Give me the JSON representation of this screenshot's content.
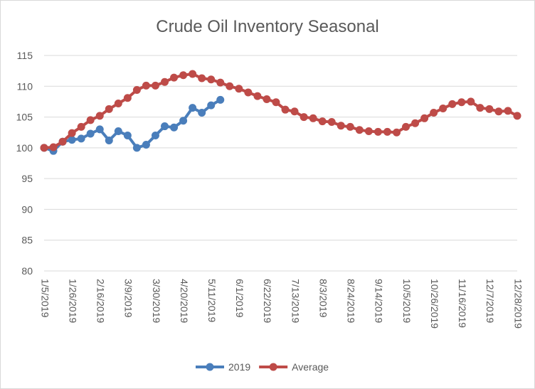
{
  "chart_data": {
    "type": "line",
    "title": "Crude Oil Inventory Seasonal",
    "categories": [
      "1/5/2019",
      null,
      null,
      "1/26/2019",
      null,
      null,
      "2/16/2019",
      null,
      null,
      "3/9/2019",
      null,
      null,
      "3/30/2019",
      null,
      null,
      "4/20/2019",
      null,
      null,
      "5/11/2019",
      null,
      null,
      "6/1/2019",
      null,
      null,
      "6/22/2019",
      null,
      null,
      "7/13/2019",
      null,
      null,
      "8/3/2019",
      null,
      null,
      "8/24/2019",
      null,
      null,
      "9/14/2019",
      null,
      null,
      "10/5/2019",
      null,
      null,
      "10/26/2019",
      null,
      null,
      "11/16/2019",
      null,
      null,
      "12/7/2019",
      null,
      null,
      "12/28/2019"
    ],
    "series": [
      {
        "name": "2019",
        "color": "#4a7ebb",
        "values": [
          100,
          99.5,
          101,
          101.3,
          101.5,
          102.3,
          103,
          101.2,
          102.7,
          102,
          100,
          100.5,
          102,
          103.5,
          103.3,
          104.4,
          106.5,
          105.7,
          106.9,
          107.8,
          null,
          null,
          null,
          null,
          null,
          null,
          null,
          null,
          null,
          null,
          null,
          null,
          null,
          null,
          null,
          null,
          null,
          null,
          null,
          null,
          null,
          null,
          null,
          null,
          null,
          null,
          null,
          null,
          null,
          null,
          null,
          null
        ]
      },
      {
        "name": "Average",
        "color": "#be4b48",
        "values": [
          100,
          100.1,
          101,
          102.4,
          103.4,
          104.5,
          105.2,
          106.3,
          107.2,
          108.1,
          109.4,
          110.1,
          110.1,
          110.7,
          111.4,
          111.8,
          112,
          111.3,
          111.1,
          110.6,
          110,
          109.6,
          109,
          108.4,
          107.9,
          107.4,
          106.2,
          105.9,
          105,
          104.8,
          104.3,
          104.2,
          103.6,
          103.4,
          102.9,
          102.7,
          102.6,
          102.6,
          102.5,
          103.4,
          104,
          104.8,
          105.7,
          106.4,
          107.1,
          107.4,
          107.5,
          106.5,
          106.3,
          105.9,
          106,
          105.2
        ]
      }
    ],
    "ylim": [
      80,
      115
    ],
    "yticks": [
      80,
      85,
      90,
      95,
      100,
      105,
      110,
      115
    ],
    "grid": true,
    "legend": "bottom"
  }
}
